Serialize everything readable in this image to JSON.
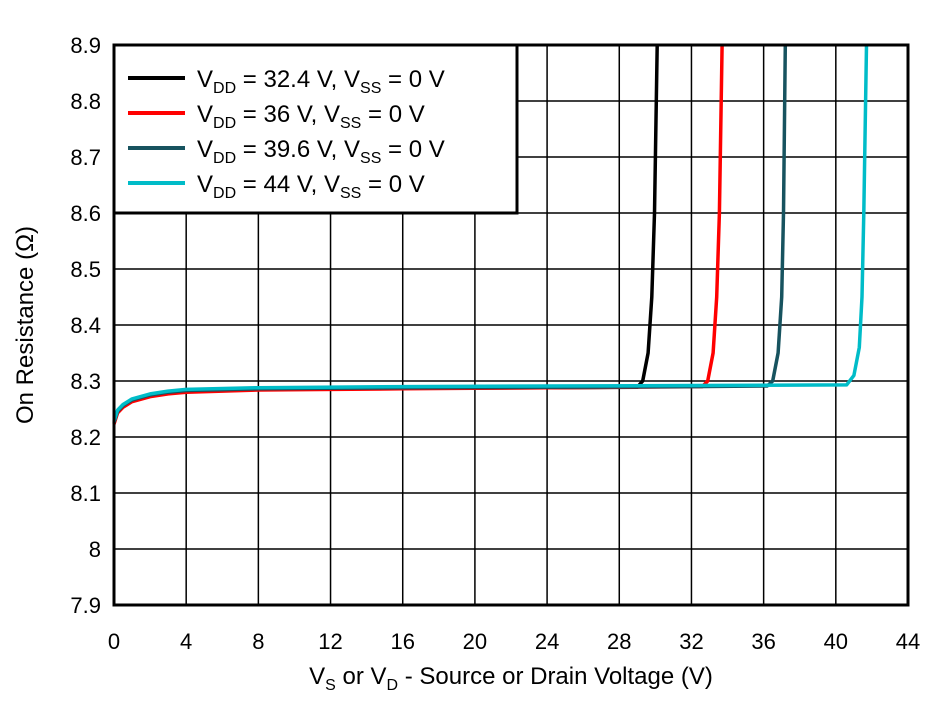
{
  "chart_data": {
    "type": "line",
    "title": "",
    "xlabel": {
      "main": "V",
      "sub1": "S",
      "mid": " or V",
      "sub2": "D",
      "rest": " - Source or Drain Voltage (V)"
    },
    "ylabel": "On Resistance (Ω)",
    "xlim": [
      0,
      44
    ],
    "ylim": [
      7.9,
      8.9
    ],
    "xticks": [
      "0",
      "4",
      "8",
      "12",
      "16",
      "20",
      "24",
      "28",
      "32",
      "36",
      "40",
      "44"
    ],
    "yticks": [
      "7.9",
      "8",
      "8.1",
      "8.2",
      "8.3",
      "8.4",
      "8.5",
      "8.6",
      "8.7",
      "8.8",
      "8.9"
    ],
    "grid": true,
    "legend_position": "top-left",
    "series": [
      {
        "name": "VDD = 32.4 V, VSS = 0 V",
        "legend": {
          "vdd": "32.4 V",
          "vss": "0 V"
        },
        "color": "#000000",
        "x": [
          0,
          0.2,
          0.5,
          1,
          2,
          3,
          4,
          8,
          16,
          24,
          29.0,
          29.3,
          29.6,
          29.8,
          29.95,
          30.1
        ],
        "y": [
          8.225,
          8.245,
          8.255,
          8.265,
          8.274,
          8.279,
          8.282,
          8.285,
          8.287,
          8.288,
          8.289,
          8.3,
          8.35,
          8.45,
          8.6,
          8.9
        ]
      },
      {
        "name": "VDD = 36 V, VSS = 0 V",
        "legend": {
          "vdd": "36 V",
          "vss": "0 V"
        },
        "color": "#ff0000",
        "x": [
          0,
          0.2,
          0.5,
          1,
          2,
          3,
          4,
          8,
          16,
          24,
          32.6,
          32.9,
          33.2,
          33.4,
          33.55,
          33.7
        ],
        "y": [
          8.223,
          8.243,
          8.253,
          8.263,
          8.272,
          8.277,
          8.28,
          8.284,
          8.286,
          8.288,
          8.29,
          8.3,
          8.35,
          8.45,
          8.6,
          8.9
        ]
      },
      {
        "name": "VDD = 39.6 V, VSS = 0 V",
        "legend": {
          "vdd": "39.6 V",
          "vss": "0 V"
        },
        "color": "#17535f",
        "x": [
          0,
          0.2,
          0.5,
          1,
          2,
          3,
          4,
          8,
          16,
          24,
          32,
          36.2,
          36.5,
          36.8,
          37.0,
          37.1,
          37.2
        ],
        "y": [
          8.226,
          8.246,
          8.256,
          8.266,
          8.275,
          8.28,
          8.283,
          8.286,
          8.288,
          8.289,
          8.29,
          8.291,
          8.3,
          8.35,
          8.45,
          8.6,
          8.9
        ]
      },
      {
        "name": "VDD = 44 V, VSS = 0 V",
        "legend": {
          "vdd": "44 V",
          "vss": "0 V"
        },
        "color": "#00bcc8",
        "x": [
          0,
          0.2,
          0.5,
          1,
          2,
          3,
          4,
          8,
          16,
          24,
          32,
          40.6,
          41.0,
          41.3,
          41.45,
          41.55,
          41.7
        ],
        "y": [
          8.228,
          8.248,
          8.258,
          8.268,
          8.277,
          8.282,
          8.285,
          8.288,
          8.29,
          8.291,
          8.292,
          8.293,
          8.31,
          8.36,
          8.45,
          8.6,
          8.9
        ]
      }
    ]
  }
}
